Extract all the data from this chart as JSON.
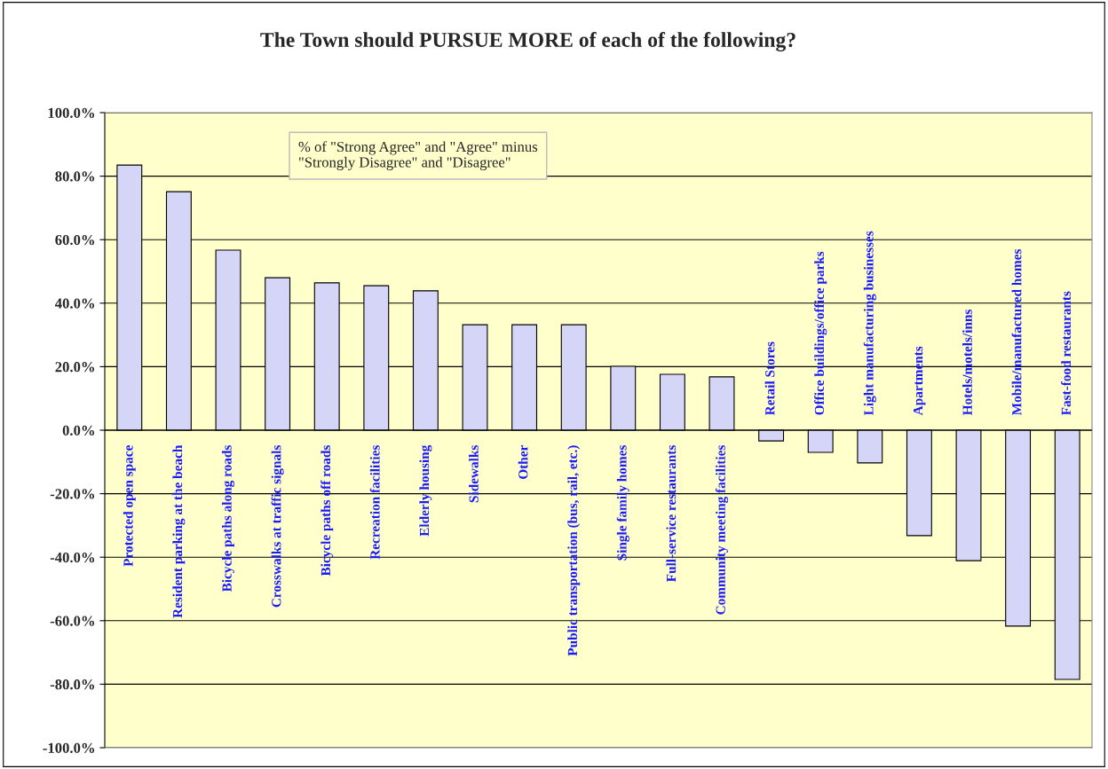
{
  "chart_data": {
    "type": "bar",
    "title": "The Town should PURSUE MORE of each of the following?",
    "categories": [
      "Protected open space",
      "Resident parking at the beach",
      "Bicycle paths along roads",
      "Crosswalks at traffic signals",
      "Bicycle paths off roads",
      "Recreation facilities",
      "Elderly housing",
      "Sidewalks",
      "Other",
      "Public transportation (bus, rail, etc.)",
      "Single family homes",
      "Full-service restaurants",
      "Community meeting facilities",
      "Retail Stores",
      "Office buildings/office parks",
      "Light manufacturing businesses",
      "Apartments",
      "Hotels/motels/inns",
      "Mobile/manufactured homes",
      "Fast-food restaurants"
    ],
    "values": [
      83.5,
      75.1,
      56.7,
      48.0,
      46.4,
      45.5,
      43.9,
      33.2,
      33.2,
      33.2,
      20.1,
      17.6,
      16.8,
      -3.4,
      -7.0,
      -10.3,
      -33.2,
      -41.1,
      -61.7,
      -78.5
    ],
    "color": "#d5d5f7",
    "ylim": [
      -100,
      100
    ],
    "yticks": [
      {
        "value": -100,
        "label": "-100.0%"
      },
      {
        "value": -80,
        "label": "-80.0%"
      },
      {
        "value": -60,
        "label": "-60.0%"
      },
      {
        "value": -40,
        "label": "-40.0%"
      },
      {
        "value": -20,
        "label": "-20.0%"
      },
      {
        "value": 0,
        "label": "0.0%"
      },
      {
        "value": 20,
        "label": "20.0%"
      },
      {
        "value": 40,
        "label": "40.0%"
      },
      {
        "value": 60,
        "label": "60.0%"
      },
      {
        "value": 80,
        "label": "80.0%"
      },
      {
        "value": 100,
        "label": "100.0%"
      }
    ],
    "grid": "y",
    "annotations": [
      "% of \"Strong Agree\" and \"Agree\" minus\n\"Strongly Disagree\" and \"Disagree\""
    ]
  }
}
